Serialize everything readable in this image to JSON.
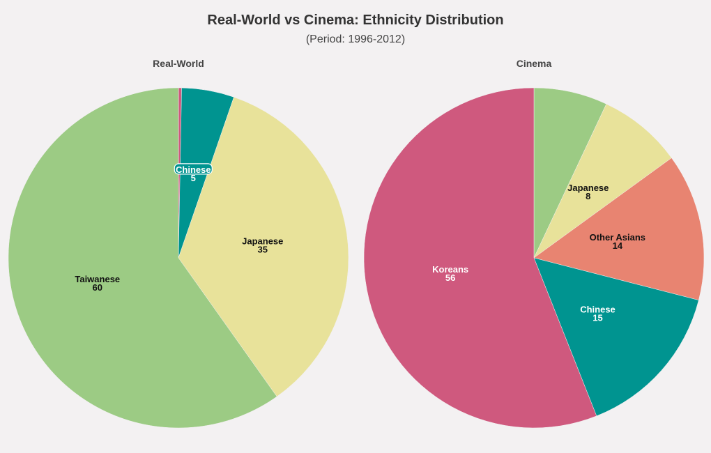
{
  "title": "Real-World vs Cinema: Ethnicity Distribution",
  "subtitle": "(Period: 1996-2012)",
  "colors": {
    "Taiwanese": "#9ccb84",
    "Japanese": "#e8e29a",
    "Chinese": "#009490",
    "Koreans": "#cf597e",
    "Other Asians": "#e88471",
    "Background": "#f3f1f2"
  },
  "chart_data": [
    {
      "type": "pie",
      "title": "Real-World",
      "direction": "clockwise",
      "start": "12 o'clock",
      "slices": [
        {
          "name": "Koreans",
          "value": 0.3,
          "color": "#cf597e",
          "show_label": false
        },
        {
          "name": "Chinese",
          "value": 5,
          "color": "#009490",
          "show_label": true,
          "label_bg": true
        },
        {
          "name": "Japanese",
          "value": 35,
          "color": "#e8e29a",
          "show_label": true
        },
        {
          "name": "Taiwanese",
          "value": 60,
          "color": "#9ccb84",
          "show_label": true
        }
      ]
    },
    {
      "type": "pie",
      "title": "Cinema",
      "direction": "clockwise",
      "start": "12 o'clock",
      "slices": [
        {
          "name": "Taiwanese",
          "value": 7,
          "color": "#9ccb84",
          "show_label": false
        },
        {
          "name": "Japanese",
          "value": 8,
          "color": "#e8e29a",
          "show_label": true
        },
        {
          "name": "Other Asians",
          "value": 14,
          "color": "#e88471",
          "show_label": true
        },
        {
          "name": "Chinese",
          "value": 15,
          "color": "#009490",
          "show_label": true
        },
        {
          "name": "Koreans",
          "value": 56,
          "color": "#cf597e",
          "show_label": true
        }
      ]
    }
  ]
}
